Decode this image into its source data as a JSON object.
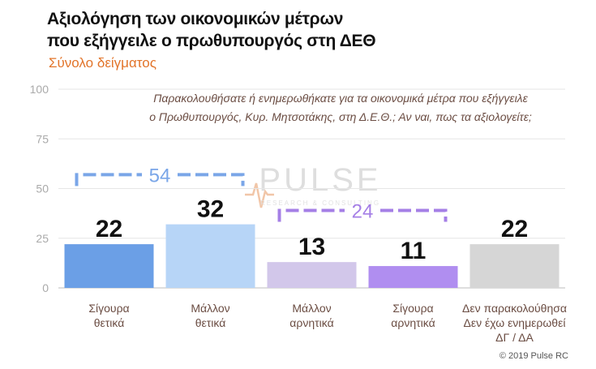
{
  "title_line1": "Αξιολόγηση των οικονομικών μέτρων",
  "title_line2": "που εξήγγειλε ο πρωθυπουργός στη ΔΕΘ",
  "subtitle": "Σύνολο δείγματος",
  "question_line1": "Παρακολουθήσατε ή ενημερωθήκατε για τα οικονομικά μέτρα που εξήγγειλε",
  "question_line2": "ο Πρωθυπουργός, Κυρ. Μητσοτάκης, στη Δ.Ε.Θ.; Αν ναι, πως τα αξιολογείτε;",
  "watermark": "PULSE",
  "watermark_sub": "RESEARCH & CONSULTING",
  "copyright": "© 2019 Pulse RC",
  "colors": {
    "title": "#111111",
    "subtitle": "#e2742a",
    "positive_bracket": "#7aa6e8",
    "negative_bracket": "#a57fe6"
  },
  "chart_data": {
    "type": "bar",
    "title": "Αξιολόγηση των οικονομικών μέτρων που εξήγγειλε ο πρωθυπουργός στη ΔΕΘ",
    "ylim": [
      0,
      100
    ],
    "yticks": [
      0,
      25,
      50,
      75,
      100
    ],
    "categories": [
      [
        "Σίγουρα",
        "θετικά"
      ],
      [
        "Μάλλον",
        "θετικά"
      ],
      [
        "Μάλλον",
        "αρνητικά"
      ],
      [
        "Σίγουρα",
        "αρνητικά"
      ],
      [
        "Δεν παρακολούθησα",
        "Δεν έχω ενημερωθεί",
        "ΔΓ / ΔΑ"
      ]
    ],
    "values": [
      22,
      32,
      13,
      11,
      22
    ],
    "bar_colors": [
      "#6b9fe6",
      "#b7d5f7",
      "#d2c7ea",
      "#b08ef0",
      "#d6d6d6"
    ],
    "annotations": [
      {
        "label": "54",
        "from": 0,
        "to": 1,
        "level": 57,
        "color": "#7aa6e8"
      },
      {
        "label": "24",
        "from": 2,
        "to": 3,
        "level": 39,
        "color": "#a57fe6"
      }
    ]
  }
}
